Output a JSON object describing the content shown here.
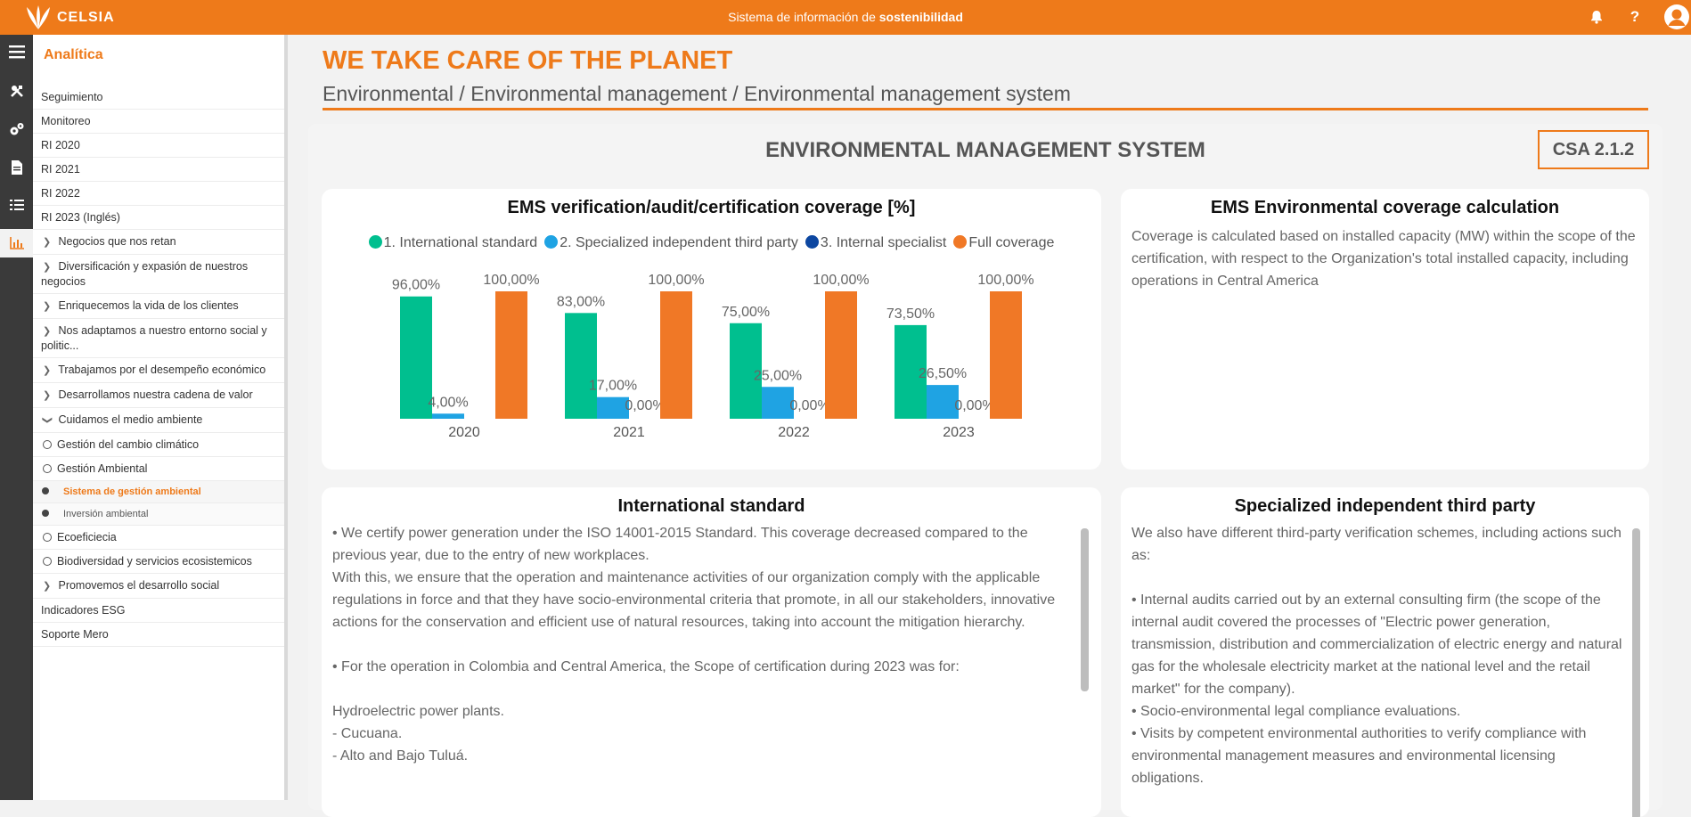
{
  "topbar": {
    "logo_text": "CELSIA",
    "title_prefix": "Sistema de información de ",
    "title_bold": "sostenibilidad",
    "icons": [
      "bell-icon",
      "help-icon",
      "user-icon"
    ],
    "color": "#ee7a1a"
  },
  "rail": {
    "icons": [
      "menu-icon",
      "tools-icon",
      "gears-icon",
      "document-icon",
      "list-icon",
      "chart-icon"
    ]
  },
  "sidebar": {
    "title": "Analítica",
    "items": [
      {
        "label": "Seguimiento"
      },
      {
        "label": "Monitoreo"
      },
      {
        "label": "RI 2020"
      },
      {
        "label": "RI 2021"
      },
      {
        "label": "RI 2022"
      },
      {
        "label": "RI 2023 (Inglés)"
      },
      {
        "label": "Negocios que nos retan"
      },
      {
        "label": "Diversificación y expasión de nuestros negocios"
      },
      {
        "label": "Enriquecemos la vida de los clientes"
      },
      {
        "label": "Nos adaptamos a nuestro entorno social y politic..."
      },
      {
        "label": "Trabajamos por el desempeño económico"
      },
      {
        "label": "Desarrollamos nuestra cadena de valor"
      },
      {
        "label": "Cuidamos el medio ambiente"
      },
      {
        "label": "Gestión del cambio climático"
      },
      {
        "label": "Gestión Ambiental"
      },
      {
        "label": "Sistema de gestión ambiental"
      },
      {
        "label": "Inversión ambiental"
      },
      {
        "label": "Ecoeficiecia"
      },
      {
        "label": "Biodiversidad y servicios ecosistemicos"
      },
      {
        "label": "Promovemos el desarrollo social"
      },
      {
        "label": "Indicadores ESG"
      },
      {
        "label": "Soporte Mero"
      }
    ]
  },
  "page": {
    "heading": "WE TAKE CARE OF THE PLANET",
    "breadcrumb": "Environmental / Environmental management / Environmental management system",
    "section_title": "ENVIRONMENTAL MANAGEMENT SYSTEM",
    "badge": "CSA 2.1.2"
  },
  "cards": {
    "chart_title": "EMS verification/audit/certification coverage [%]",
    "calc": {
      "title": "EMS Environmental coverage calculation",
      "text": "Coverage is calculated based on installed capacity (MW) within the scope of the certification, with respect to the Organization's total installed capacity, including operations in Central America"
    },
    "intl": {
      "title": "International standard",
      "text": "• We certify power generation under the ISO 14001-2015 Standard. This coverage decreased compared to the previous year, due to the entry of new workplaces.\nWith this, we ensure that the operation and maintenance activities of our organization comply with the applicable regulations in force and that they have socio-environmental criteria that promote, in all our stakeholders, innovative actions for the conservation and efficient use of natural resources, taking into account the mitigation hierarchy.\n\n• For the operation in Colombia and Central America, the Scope of certification during 2023 was for:\n\nHydroelectric power plants.\n- Cucuana.\n- Alto and Bajo Tuluá."
    },
    "third": {
      "title": "Specialized independent third party",
      "text": "We also have different third-party verification schemes, including actions such as:\n\n• Internal audits carried out by an external consulting firm (the scope of the internal audit covered the processes of \"Electric power generation, transmission, distribution and commercialization of electric energy and natural gas for the wholesale electricity market at the national level and the retail market\" for the company).\n• Socio-environmental legal compliance evaluations.\n• Visits by competent environmental authorities to verify compliance with environmental management measures and environmental licensing obligations."
    }
  },
  "chart_data": {
    "type": "bar",
    "title": "EMS verification/audit/certification coverage [%]",
    "categories": [
      "2020",
      "2021",
      "2022",
      "2023"
    ],
    "series": [
      {
        "name": "1. International standard",
        "color": "#00bf8f",
        "values": [
          96.0,
          83.0,
          75.0,
          73.5
        ],
        "labels": [
          "96,00%",
          "83,00%",
          "75,00%",
          "73,50%"
        ]
      },
      {
        "name": "2. Specialized independent third party",
        "color": "#1fa3e3",
        "values": [
          4.0,
          17.0,
          25.0,
          26.5
        ],
        "labels": [
          "4,00%",
          "17,00%",
          "25,00%",
          "26,50%"
        ]
      },
      {
        "name": "3. Internal specialist",
        "color": "#0d47a1",
        "values": [
          0.0,
          0.0,
          0.0,
          0.0
        ],
        "labels": [
          "",
          "0,00%",
          "0,00%",
          "0,00%"
        ]
      },
      {
        "name": "Full coverage",
        "color": "#f07826",
        "values": [
          100,
          100,
          100,
          100
        ],
        "labels": [
          "100,00%",
          "100,00%",
          "100,00%",
          "100,00%"
        ]
      }
    ],
    "ylim": [
      0,
      100
    ],
    "grid": false,
    "legend": "top"
  }
}
